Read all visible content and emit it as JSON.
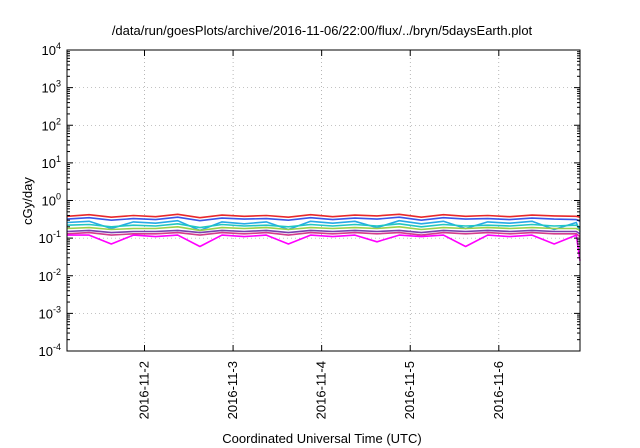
{
  "chart_data": {
    "type": "line",
    "title": "/data/run/goesPlots/archive/2016-11-06/22:00/flux/../bryn/5daysEarth.plot",
    "xlabel": "Coordinated Universal Time (UTC)",
    "ylabel": "cGy/day",
    "x_range": [
      "2016-11-01T03:00",
      "2016-11-06T22:00"
    ],
    "y_scale": "log",
    "ylim": [
      0.0001,
      10000
    ],
    "y_ticks": [
      {
        "value": 0.0001,
        "base": "10",
        "exp": "-4"
      },
      {
        "value": 0.001,
        "base": "10",
        "exp": "-3"
      },
      {
        "value": 0.01,
        "base": "10",
        "exp": "-2"
      },
      {
        "value": 0.1,
        "base": "10",
        "exp": "-1"
      },
      {
        "value": 1,
        "base": "10",
        "exp": "0"
      },
      {
        "value": 10,
        "base": "10",
        "exp": "1"
      },
      {
        "value": 100,
        "base": "10",
        "exp": "2"
      },
      {
        "value": 1000,
        "base": "10",
        "exp": "3"
      },
      {
        "value": 10000,
        "base": "10",
        "exp": "4"
      }
    ],
    "x_ticks": [
      {
        "value": "2016-11-02T00:00",
        "label": "2016-11-2"
      },
      {
        "value": "2016-11-03T00:00",
        "label": "2016-11-3"
      },
      {
        "value": "2016-11-04T00:00",
        "label": "2016-11-4"
      },
      {
        "value": "2016-11-05T00:00",
        "label": "2016-11-5"
      },
      {
        "value": "2016-11-06T00:00",
        "label": "2016-11-6"
      }
    ],
    "grid": true,
    "legend": "none",
    "x": [
      "2016-11-01T03:00",
      "2016-11-01T09:00",
      "2016-11-01T15:00",
      "2016-11-01T21:00",
      "2016-11-02T03:00",
      "2016-11-02T09:00",
      "2016-11-02T15:00",
      "2016-11-02T21:00",
      "2016-11-03T03:00",
      "2016-11-03T09:00",
      "2016-11-03T15:00",
      "2016-11-03T21:00",
      "2016-11-04T03:00",
      "2016-11-04T09:00",
      "2016-11-04T15:00",
      "2016-11-04T21:00",
      "2016-11-05T03:00",
      "2016-11-05T09:00",
      "2016-11-05T15:00",
      "2016-11-05T21:00",
      "2016-11-06T03:00",
      "2016-11-06T09:00",
      "2016-11-06T15:00",
      "2016-11-06T21:00",
      "2016-11-06T22:00"
    ],
    "series": [
      {
        "color": "#e8282a",
        "values": [
          0.38,
          0.42,
          0.36,
          0.4,
          0.37,
          0.43,
          0.35,
          0.41,
          0.38,
          0.4,
          0.36,
          0.42,
          0.37,
          0.41,
          0.39,
          0.43,
          0.36,
          0.42,
          0.38,
          0.4,
          0.37,
          0.41,
          0.39,
          0.38,
          0.36
        ]
      },
      {
        "color": "#3a55e8",
        "values": [
          0.32,
          0.35,
          0.3,
          0.33,
          0.31,
          0.36,
          0.29,
          0.34,
          0.32,
          0.33,
          0.3,
          0.35,
          0.31,
          0.34,
          0.32,
          0.36,
          0.3,
          0.35,
          0.32,
          0.33,
          0.31,
          0.34,
          0.32,
          0.31,
          0.28
        ]
      },
      {
        "color": "#27a9e6",
        "values": [
          0.26,
          0.28,
          0.18,
          0.27,
          0.25,
          0.29,
          0.16,
          0.27,
          0.24,
          0.27,
          0.17,
          0.28,
          0.25,
          0.28,
          0.19,
          0.29,
          0.24,
          0.28,
          0.18,
          0.27,
          0.25,
          0.28,
          0.17,
          0.26,
          0.15
        ]
      },
      {
        "color": "#20c6c2",
        "values": [
          0.22,
          0.23,
          0.2,
          0.22,
          0.21,
          0.24,
          0.19,
          0.23,
          0.21,
          0.22,
          0.2,
          0.23,
          0.21,
          0.23,
          0.21,
          0.24,
          0.2,
          0.23,
          0.21,
          0.22,
          0.21,
          0.23,
          0.21,
          0.22,
          0.19
        ]
      },
      {
        "color": "#9bd04a",
        "values": [
          0.18,
          0.19,
          0.17,
          0.18,
          0.18,
          0.2,
          0.16,
          0.19,
          0.18,
          0.19,
          0.17,
          0.19,
          0.18,
          0.19,
          0.18,
          0.2,
          0.17,
          0.19,
          0.18,
          0.19,
          0.18,
          0.19,
          0.18,
          0.18,
          0.16
        ]
      },
      {
        "color": "#7a3fb0",
        "values": [
          0.15,
          0.16,
          0.14,
          0.15,
          0.15,
          0.16,
          0.14,
          0.16,
          0.15,
          0.16,
          0.14,
          0.16,
          0.15,
          0.16,
          0.15,
          0.16,
          0.14,
          0.16,
          0.15,
          0.16,
          0.15,
          0.16,
          0.15,
          0.15,
          0.13
        ]
      },
      {
        "color": "#d33c8c",
        "values": [
          0.13,
          0.14,
          0.12,
          0.13,
          0.13,
          0.14,
          0.12,
          0.14,
          0.13,
          0.14,
          0.12,
          0.14,
          0.13,
          0.14,
          0.13,
          0.14,
          0.12,
          0.14,
          0.13,
          0.14,
          0.13,
          0.14,
          0.13,
          0.13,
          0.11
        ]
      },
      {
        "color": "#ff00ff",
        "values": [
          0.12,
          0.12,
          0.07,
          0.12,
          0.11,
          0.12,
          0.06,
          0.12,
          0.11,
          0.12,
          0.07,
          0.12,
          0.11,
          0.12,
          0.08,
          0.12,
          0.11,
          0.12,
          0.06,
          0.12,
          0.11,
          0.12,
          0.07,
          0.12,
          0.025
        ]
      }
    ]
  }
}
